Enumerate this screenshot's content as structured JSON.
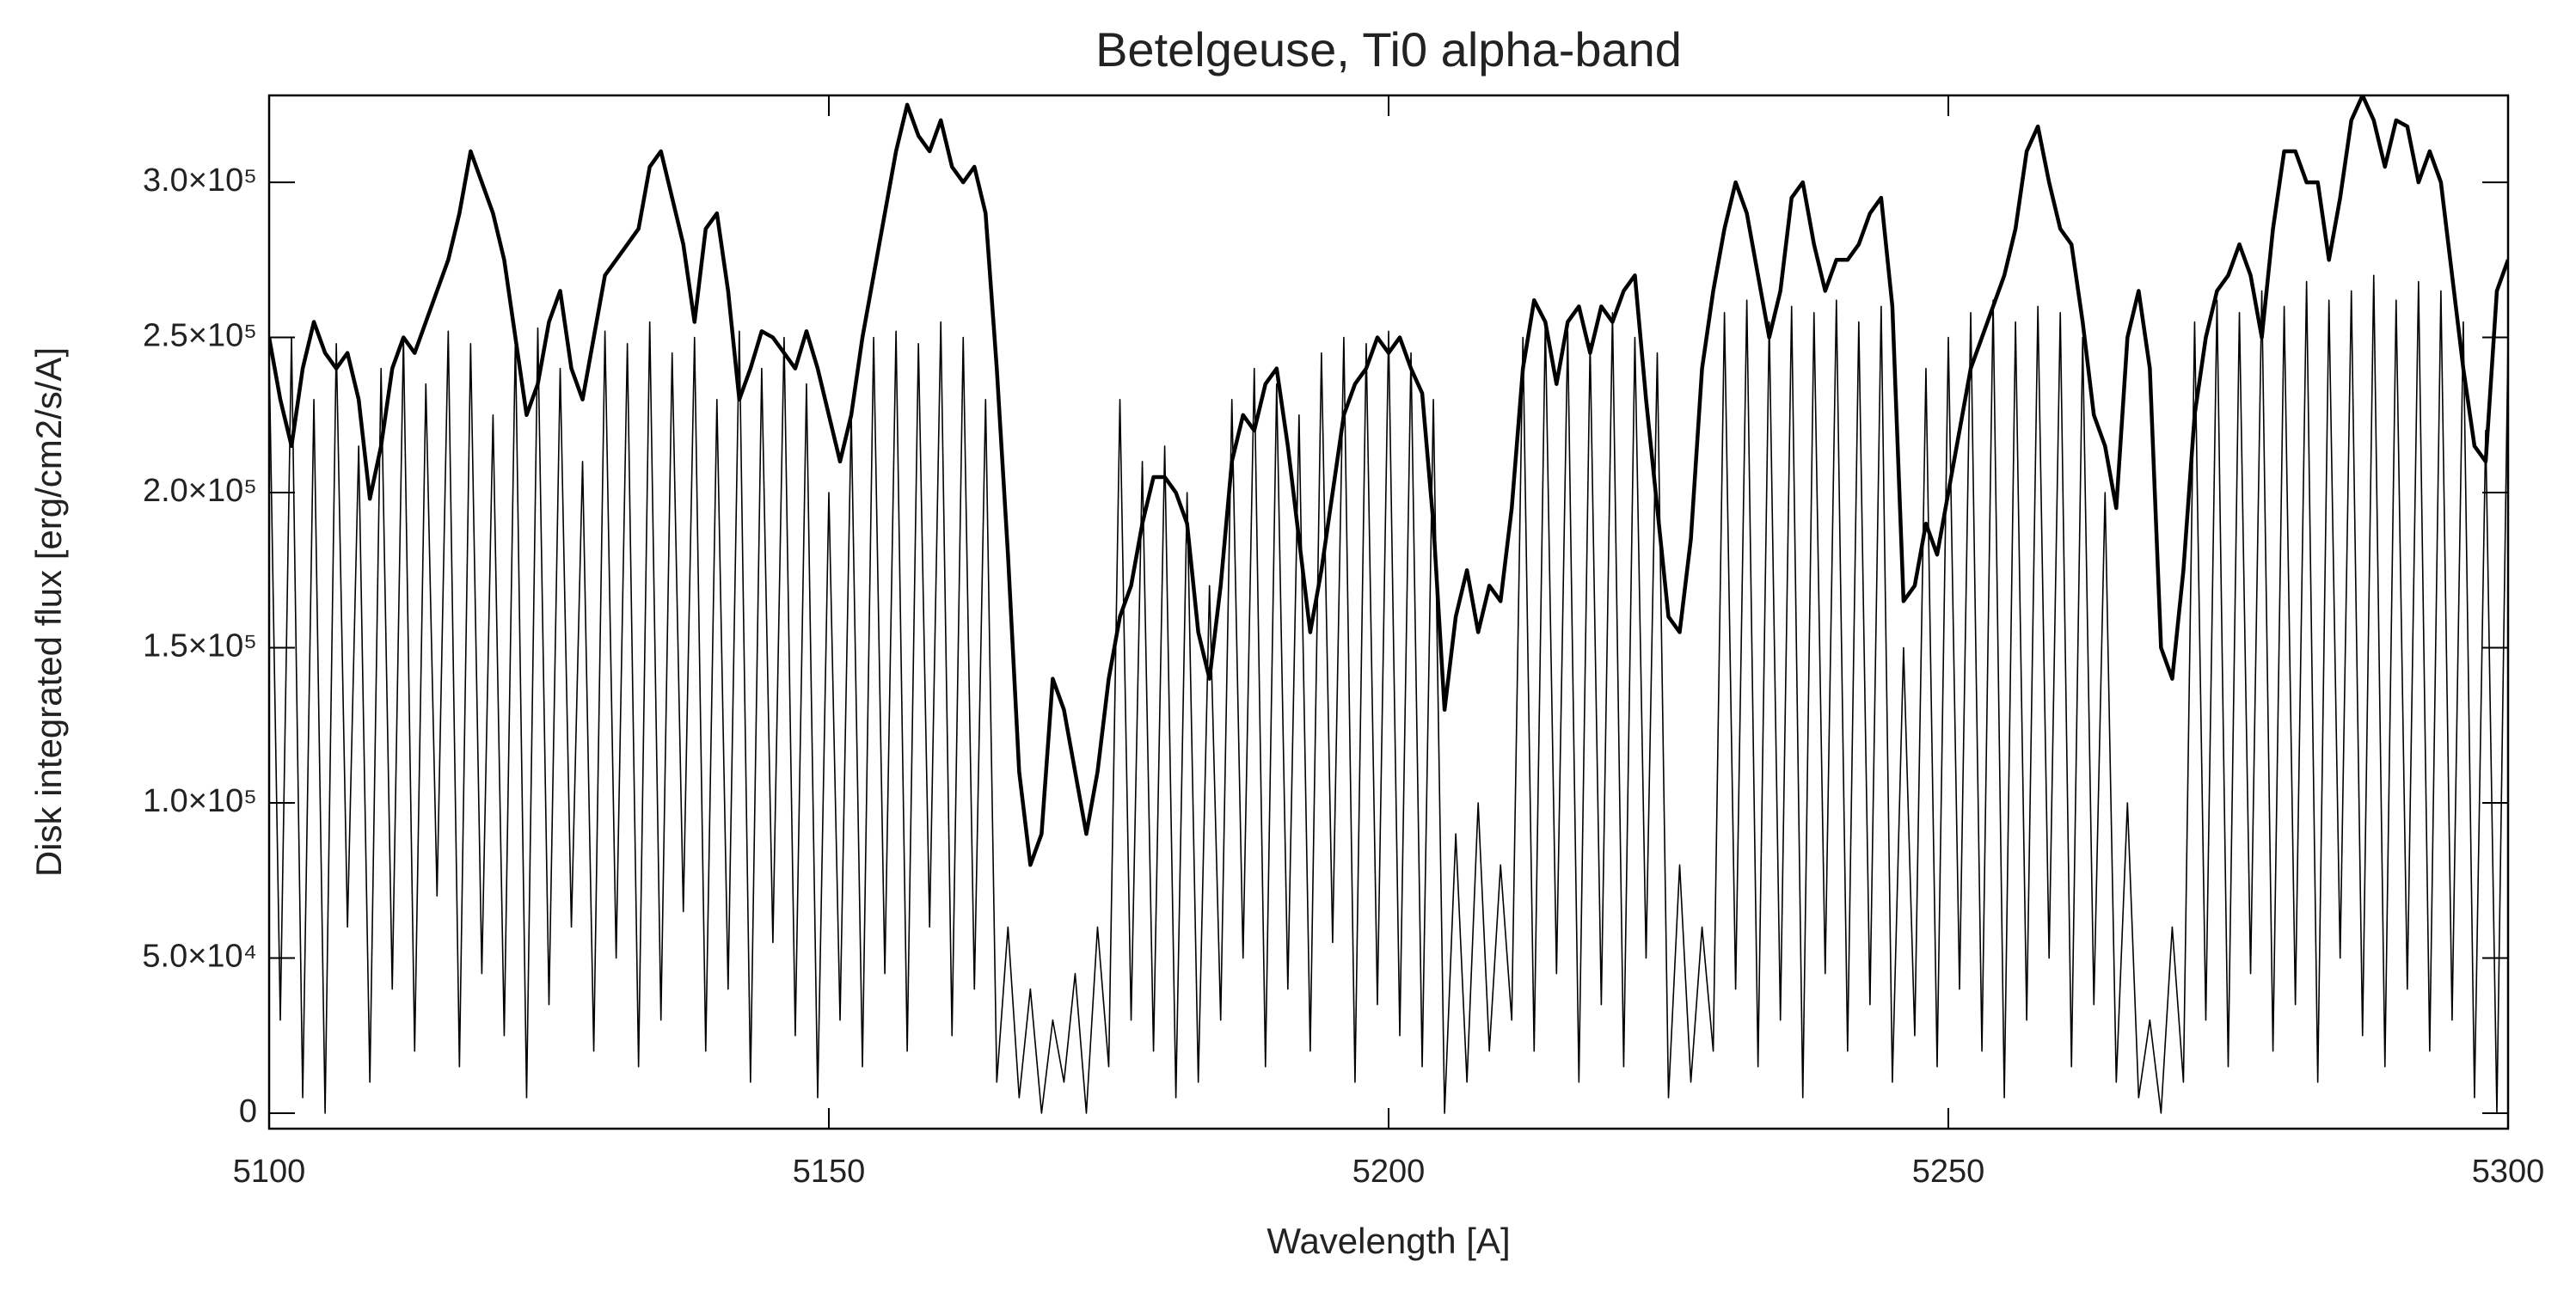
{
  "chart_data": {
    "type": "line",
    "title": "Betelgeuse, Ti0 alpha-band",
    "x_label": "Wavelength [A]",
    "y_label": "Disk integrated flux [erg/cm2/s/A]",
    "xlim": [
      5100,
      5300
    ],
    "ylim": [
      -5000,
      328000
    ],
    "xticks": [
      5100,
      5150,
      5200,
      5250,
      5300
    ],
    "yticks": [
      0,
      {
        "value": 50000,
        "label": "5.0×10⁴"
      },
      {
        "value": 100000,
        "label": "1.0×10⁵"
      },
      {
        "value": 150000,
        "label": "1.5×10⁵"
      },
      {
        "value": 200000,
        "label": "2.0×10⁵"
      },
      {
        "value": 250000,
        "label": "2.5×10⁵"
      },
      {
        "value": 300000,
        "label": "3.0×10⁵"
      }
    ],
    "grid": false,
    "x": [
      5100,
      5101,
      5102,
      5103,
      5104,
      5105,
      5106,
      5107,
      5108,
      5109,
      5110,
      5111,
      5112,
      5113,
      5114,
      5115,
      5116,
      5117,
      5118,
      5119,
      5120,
      5121,
      5122,
      5123,
      5124,
      5125,
      5126,
      5127,
      5128,
      5129,
      5130,
      5131,
      5132,
      5133,
      5134,
      5135,
      5136,
      5137,
      5138,
      5139,
      5140,
      5141,
      5142,
      5143,
      5144,
      5145,
      5146,
      5147,
      5148,
      5149,
      5150,
      5151,
      5152,
      5153,
      5154,
      5155,
      5156,
      5157,
      5158,
      5159,
      5160,
      5161,
      5162,
      5163,
      5164,
      5165,
      5166,
      5167,
      5168,
      5169,
      5170,
      5171,
      5172,
      5173,
      5174,
      5175,
      5176,
      5177,
      5178,
      5179,
      5180,
      5181,
      5182,
      5183,
      5184,
      5185,
      5186,
      5187,
      5188,
      5189,
      5190,
      5191,
      5192,
      5193,
      5194,
      5195,
      5196,
      5197,
      5198,
      5199,
      5200,
      5201,
      5202,
      5203,
      5204,
      5205,
      5206,
      5207,
      5208,
      5209,
      5210,
      5211,
      5212,
      5213,
      5214,
      5215,
      5216,
      5217,
      5218,
      5219,
      5220,
      5221,
      5222,
      5223,
      5224,
      5225,
      5226,
      5227,
      5228,
      5229,
      5230,
      5231,
      5232,
      5233,
      5234,
      5235,
      5236,
      5237,
      5238,
      5239,
      5240,
      5241,
      5242,
      5243,
      5244,
      5245,
      5246,
      5247,
      5248,
      5249,
      5250,
      5251,
      5252,
      5253,
      5254,
      5255,
      5256,
      5257,
      5258,
      5259,
      5260,
      5261,
      5262,
      5263,
      5264,
      5265,
      5266,
      5267,
      5268,
      5269,
      5270,
      5271,
      5272,
      5273,
      5274,
      5275,
      5276,
      5277,
      5278,
      5279,
      5280,
      5281,
      5282,
      5283,
      5284,
      5285,
      5286,
      5287,
      5288,
      5289,
      5290,
      5291,
      5292,
      5293,
      5294,
      5295,
      5296,
      5297,
      5298,
      5299,
      5300
    ],
    "series": [
      {
        "color": "#000000",
        "values": [
          245000,
          30000,
          250000,
          5000,
          230000,
          0,
          248000,
          60000,
          215000,
          10000,
          240000,
          40000,
          250000,
          20000,
          235000,
          70000,
          252000,
          15000,
          248000,
          45000,
          225000,
          25000,
          250000,
          5000,
          253000,
          35000,
          240000,
          60000,
          210000,
          20000,
          252000,
          50000,
          248000,
          15000,
          255000,
          30000,
          245000,
          65000,
          250000,
          20000,
          230000,
          40000,
          252000,
          10000,
          240000,
          55000,
          250000,
          25000,
          235000,
          5000,
          200000,
          30000,
          225000,
          15000,
          250000,
          45000,
          252000,
          20000,
          248000,
          60000,
          255000,
          25000,
          250000,
          40000,
          230000,
          10000,
          60000,
          5000,
          40000,
          0,
          30000,
          10000,
          45000,
          0,
          60000,
          15000,
          230000,
          30000,
          210000,
          20000,
          215000,
          5000,
          200000,
          10000,
          170000,
          30000,
          230000,
          50000,
          240000,
          15000,
          235000,
          40000,
          225000,
          20000,
          245000,
          55000,
          250000,
          10000,
          248000,
          35000,
          252000,
          25000,
          245000,
          15000,
          230000,
          0,
          90000,
          10000,
          100000,
          20000,
          80000,
          30000,
          250000,
          20000,
          255000,
          45000,
          252000,
          10000,
          248000,
          35000,
          258000,
          15000,
          250000,
          50000,
          245000,
          5000,
          80000,
          10000,
          60000,
          20000,
          258000,
          40000,
          262000,
          15000,
          255000,
          30000,
          260000,
          5000,
          258000,
          45000,
          262000,
          20000,
          255000,
          35000,
          260000,
          10000,
          150000,
          25000,
          240000,
          15000,
          250000,
          40000,
          258000,
          20000,
          262000,
          5000,
          255000,
          30000,
          260000,
          50000,
          258000,
          15000,
          250000,
          35000,
          200000,
          10000,
          100000,
          5000,
          30000,
          0,
          60000,
          10000,
          255000,
          30000,
          262000,
          15000,
          258000,
          45000,
          265000,
          20000,
          260000,
          35000,
          268000,
          10000,
          262000,
          50000,
          265000,
          25000,
          270000,
          15000,
          262000,
          40000,
          268000,
          20000,
          265000,
          30000,
          255000,
          5000,
          220000,
          0,
          250000
        ]
      },
      {
        "color": "#000000",
        "values": [
          250000,
          230000,
          215000,
          240000,
          255000,
          245000,
          240000,
          245000,
          230000,
          198000,
          215000,
          240000,
          250000,
          245000,
          255000,
          265000,
          275000,
          290000,
          310000,
          300000,
          290000,
          275000,
          250000,
          225000,
          235000,
          255000,
          265000,
          240000,
          230000,
          250000,
          270000,
          275000,
          280000,
          285000,
          305000,
          310000,
          295000,
          280000,
          255000,
          285000,
          290000,
          265000,
          230000,
          240000,
          252000,
          250000,
          245000,
          240000,
          252000,
          240000,
          225000,
          210000,
          225000,
          250000,
          270000,
          290000,
          310000,
          325000,
          315000,
          310000,
          320000,
          305000,
          300000,
          305000,
          290000,
          240000,
          180000,
          110000,
          80000,
          90000,
          140000,
          130000,
          110000,
          90000,
          110000,
          140000,
          160000,
          170000,
          190000,
          205000,
          205000,
          200000,
          190000,
          155000,
          140000,
          170000,
          210000,
          225000,
          220000,
          235000,
          240000,
          215000,
          185000,
          155000,
          175000,
          200000,
          225000,
          235000,
          240000,
          250000,
          245000,
          250000,
          240000,
          232000,
          190000,
          130000,
          160000,
          175000,
          155000,
          170000,
          165000,
          195000,
          240000,
          262000,
          255000,
          235000,
          255000,
          260000,
          245000,
          260000,
          255000,
          265000,
          270000,
          230000,
          195000,
          160000,
          155000,
          185000,
          240000,
          265000,
          285000,
          300000,
          290000,
          270000,
          250000,
          265000,
          295000,
          300000,
          280000,
          265000,
          275000,
          275000,
          280000,
          290000,
          295000,
          260000,
          165000,
          170000,
          190000,
          180000,
          200000,
          220000,
          240000,
          250000,
          260000,
          270000,
          285000,
          310000,
          318000,
          300000,
          285000,
          280000,
          255000,
          225000,
          215000,
          195000,
          250000,
          265000,
          240000,
          150000,
          140000,
          175000,
          225000,
          250000,
          265000,
          270000,
          280000,
          270000,
          250000,
          285000,
          310000,
          310000,
          300000,
          300000,
          275000,
          295000,
          320000,
          328000,
          320000,
          305000,
          320000,
          318000,
          300000,
          310000,
          300000,
          270000,
          240000,
          215000,
          210000,
          265000,
          275000
        ]
      }
    ]
  }
}
